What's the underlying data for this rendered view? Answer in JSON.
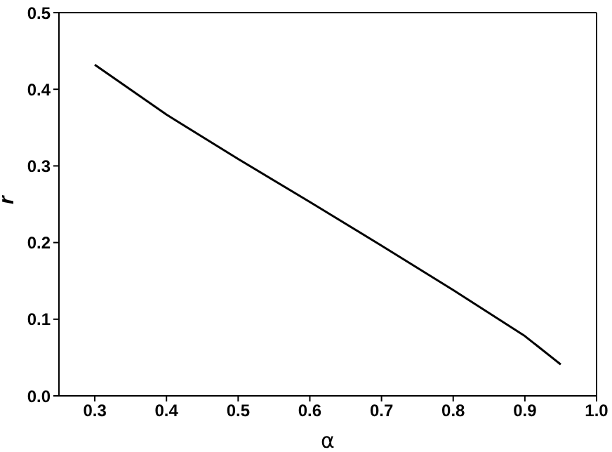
{
  "chart_data": {
    "type": "line",
    "xlabel": "α",
    "ylabel": "r",
    "series": [
      {
        "color": "#000000",
        "x": [
          0.3,
          0.4,
          0.5,
          0.6,
          0.7,
          0.8,
          0.9,
          0.95
        ],
        "values": [
          0.432,
          0.367,
          0.309,
          0.253,
          0.196,
          0.138,
          0.078,
          0.041
        ]
      }
    ],
    "xlim": [
      0.25,
      1.0
    ],
    "xticks": [
      0.3,
      0.4,
      0.5,
      0.6,
      0.7,
      0.8,
      0.9,
      {
        "value": 1,
        "label": "1.0"
      }
    ],
    "ylim": [
      0.0,
      0.5
    ],
    "yticks": [
      {
        "value": 0,
        "label": "0.0"
      },
      0.1,
      0.2,
      0.3,
      0.4,
      0.5
    ],
    "grid": false,
    "legend": false,
    "marker": "none",
    "line_style": "solid"
  }
}
